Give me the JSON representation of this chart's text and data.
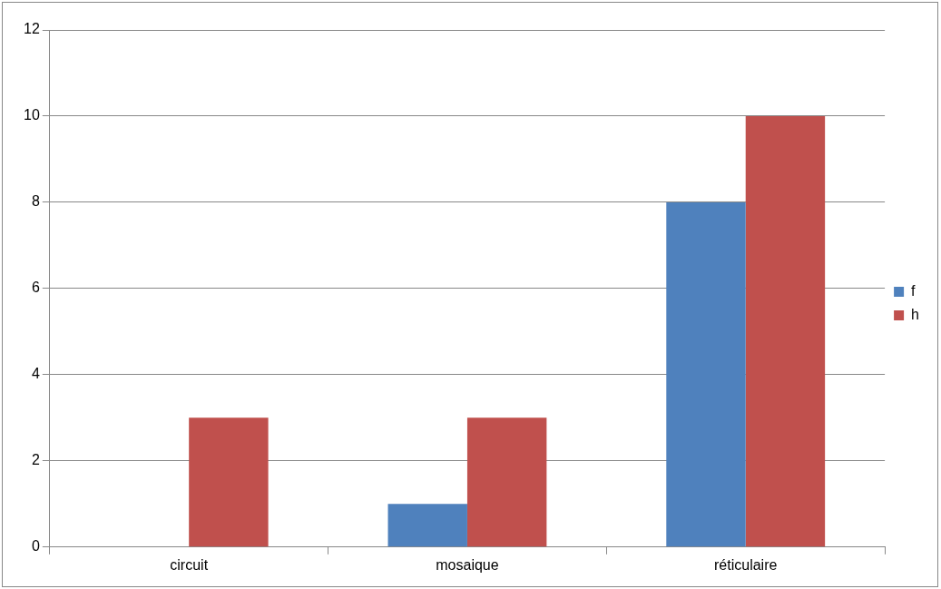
{
  "chart_data": {
    "type": "bar",
    "categories": [
      "circuit",
      "mosaique",
      "réticulaire"
    ],
    "series": [
      {
        "name": "f",
        "color": "#4f81bd",
        "values": [
          0,
          1,
          8
        ]
      },
      {
        "name": "h",
        "color": "#c0504d",
        "values": [
          3,
          3,
          10
        ]
      }
    ],
    "ylim": [
      0,
      12
    ],
    "yticks": [
      0,
      2,
      4,
      6,
      8,
      10,
      12
    ],
    "grid": "y",
    "legend": "right"
  }
}
